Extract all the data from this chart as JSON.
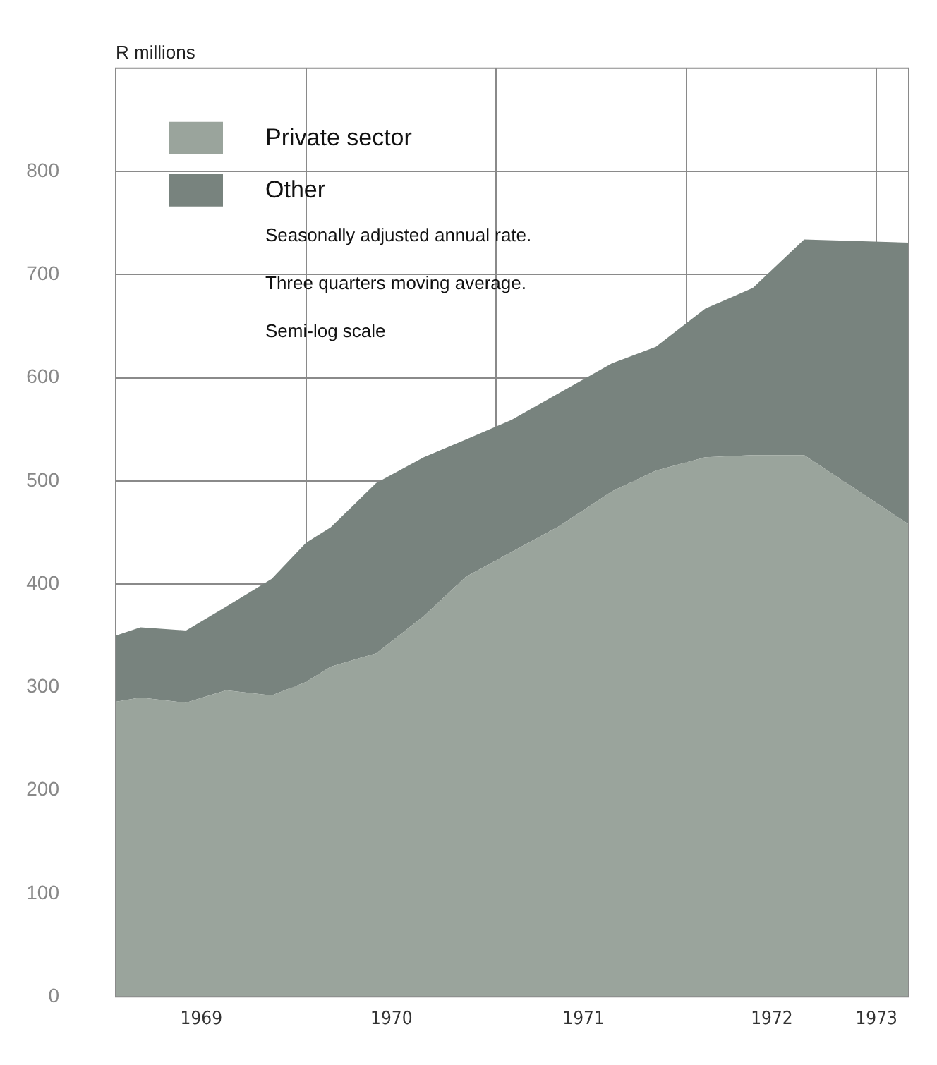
{
  "chart_data": {
    "type": "area",
    "stacked": true,
    "ylabel": "R millions",
    "x": [
      1969.0,
      1969.13,
      1969.37,
      1969.58,
      1969.82,
      1970.0,
      1970.13,
      1970.37,
      1970.62,
      1970.84,
      1971.08,
      1971.33,
      1971.61,
      1971.84,
      1972.1,
      1972.35,
      1972.62,
      1973.17
    ],
    "series": [
      {
        "name": "Private sector",
        "color": "#9aa49c",
        "values": [
          286,
          290,
          285,
          297,
          292,
          305,
          320,
          333,
          369,
          407,
          431,
          456,
          490,
          510,
          523,
          525,
          525,
          458
        ]
      },
      {
        "name": "Other",
        "color": "#78837e",
        "values": [
          64,
          68,
          70,
          81,
          113,
          135,
          135,
          165,
          154,
          133,
          128,
          129,
          124,
          120,
          144,
          162,
          209,
          273
        ]
      }
    ],
    "xlim": [
      1969.0,
      1973.17
    ],
    "xticks": [
      {
        "value": 1969.45,
        "label": "1969"
      },
      {
        "value": 1970,
        "label": null
      },
      {
        "value": 1970.45,
        "label": "1970"
      },
      {
        "value": 1971,
        "label": null
      },
      {
        "value": 1971.46,
        "label": "1971"
      },
      {
        "value": 1972,
        "label": null
      },
      {
        "value": 1972.45,
        "label": "1972"
      },
      {
        "value": 1973,
        "label": null
      },
      {
        "value": 1973,
        "label": "1973"
      }
    ],
    "ylim": [
      0,
      900
    ],
    "yticks": [
      0,
      100,
      200,
      300,
      400,
      500,
      600,
      700,
      800
    ],
    "grid": true,
    "legend": "top left",
    "marker": "none",
    "annotations": [
      "Seasonally adjusted annual rate.",
      "Three quarters moving average.",
      "Semi-log scale"
    ]
  }
}
